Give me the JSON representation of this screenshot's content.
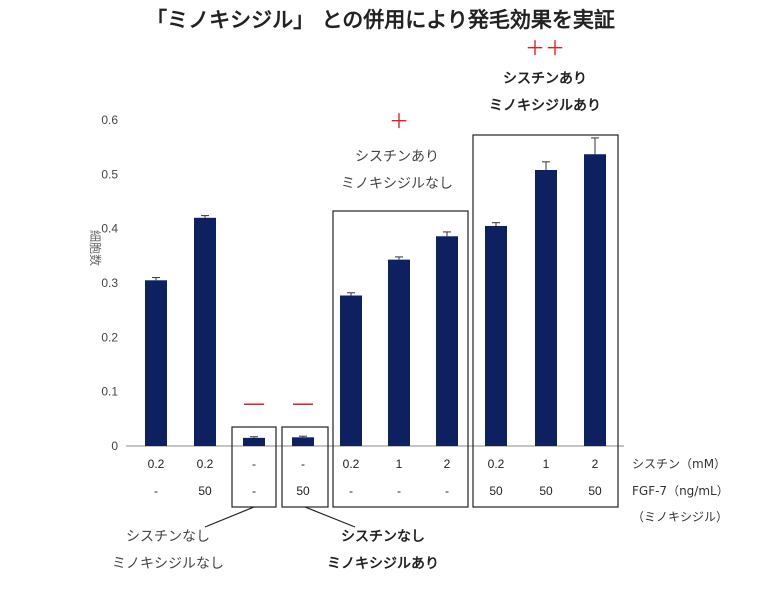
{
  "title": "「ミノキシジル」 との併用により発毛効果を実証",
  "chart_data": {
    "type": "bar",
    "ylabel": "細胞数",
    "ylim": [
      0,
      0.6
    ],
    "yticks": [
      "0",
      "0.1",
      "0.2",
      "0.3",
      "0.4",
      "0.5",
      "0.6"
    ],
    "bar_color": "#0d2160",
    "row_labels": {
      "cystine": "シスチン（mM）",
      "fgf": "FGF-7（ng/mL）",
      "fgf_sub": "（ミノキシジル）"
    },
    "categories": [
      {
        "cystine": "0.2",
        "fgf": "-",
        "value": 0.305,
        "err": 0.005
      },
      {
        "cystine": "0.2",
        "fgf": "50",
        "value": 0.42,
        "err": 0.004
      },
      {
        "cystine": "-",
        "fgf": "-",
        "value": 0.015,
        "err": 0.002
      },
      {
        "cystine": "-",
        "fgf": "50",
        "value": 0.016,
        "err": 0.002
      },
      {
        "cystine": "0.2",
        "fgf": "-",
        "value": 0.277,
        "err": 0.005
      },
      {
        "cystine": "1",
        "fgf": "-",
        "value": 0.343,
        "err": 0.005
      },
      {
        "cystine": "2",
        "fgf": "-",
        "value": 0.386,
        "err": 0.008
      },
      {
        "cystine": "0.2",
        "fgf": "50",
        "value": 0.405,
        "err": 0.006
      },
      {
        "cystine": "1",
        "fgf": "50",
        "value": 0.508,
        "err": 0.015
      },
      {
        "cystine": "2",
        "fgf": "50",
        "value": 0.537,
        "err": 0.03
      }
    ],
    "annotations": {
      "minus_mark": "―",
      "plus_mark": "＋",
      "double_plus_mark": "＋＋",
      "g3_line1": "シスチンあり",
      "g3_line2": "ミノキシジルなし",
      "g4_line1": "シスチンあり",
      "g4_line2": "ミノキシジルあり",
      "g1_line1": "シスチンなし",
      "g1_line2": "ミノキシジルなし",
      "g2_line1": "シスチンなし",
      "g2_line2": "ミノキシジルあり"
    }
  }
}
